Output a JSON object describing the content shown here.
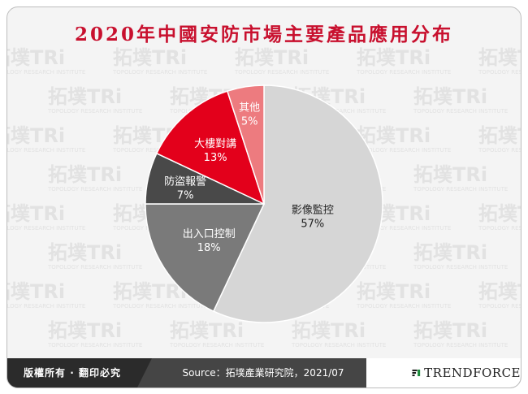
{
  "title": "2020年中國安防市場主要產品應用分布",
  "chart_data": {
    "type": "pie",
    "title": "2020年中國安防市場主要產品應用分布",
    "slices": [
      {
        "label": "影像監控",
        "value": 57,
        "display": "57%",
        "color": "#d6d6d6",
        "text_color": "#222222"
      },
      {
        "label": "出入口控制",
        "value": 18,
        "display": "18%",
        "color": "#7a7a7a",
        "text_color": "#ffffff"
      },
      {
        "label": "防盜報警",
        "value": 7,
        "display": "7%",
        "color": "#494949",
        "text_color": "#ffffff"
      },
      {
        "label": "大樓對講",
        "value": 13,
        "display": "13%",
        "color": "#e3001b",
        "text_color": "#ffffff"
      },
      {
        "label": "其他",
        "value": 5,
        "display": "5%",
        "color": "#ed7b7f",
        "text_color": "#ffffff"
      }
    ]
  },
  "footer": {
    "rights": "版權所有 · 翻印必究",
    "source": "Source：拓墣產業研究院，2021/07",
    "logo_text": "TRENDFORCE"
  },
  "watermark": {
    "brand": "拓墣TRi",
    "subtitle": "TOPOLOGY RESEARCH INSTITUTE"
  }
}
